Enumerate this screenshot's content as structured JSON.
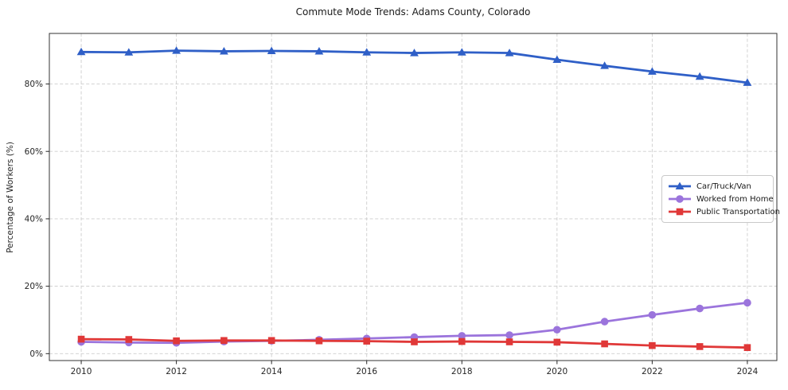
{
  "figure": {
    "title": "Commute Mode Trends: Adams County, Colorado"
  },
  "chart_data": {
    "type": "line",
    "title": "Commute Mode Trends: Adams County, Colorado",
    "xlabel": "",
    "ylabel": "Percentage of Workers (%)",
    "x": [
      2010,
      2011,
      2012,
      2013,
      2014,
      2015,
      2016,
      2017,
      2018,
      2019,
      2020,
      2021,
      2022,
      2023,
      2024
    ],
    "x_ticks": [
      2010,
      2012,
      2014,
      2016,
      2018,
      2020,
      2022,
      2024
    ],
    "x_tick_labels": [
      "2010",
      "2012",
      "2014",
      "2016",
      "2018",
      "2020",
      "2022",
      "2024"
    ],
    "y_ticks": [
      0,
      20,
      40,
      60,
      80
    ],
    "y_tick_labels": [
      "0%",
      "20%",
      "40%",
      "60%",
      "80%"
    ],
    "xlim": [
      2009.33,
      2024.62
    ],
    "ylim": [
      -2.05,
      95.0
    ],
    "grid": "dashed",
    "legend_position": "center-right",
    "series": [
      {
        "name": "Car/Truck/Van",
        "color": "#2f5fc7",
        "marker": "triangle",
        "values": [
          89.5,
          89.4,
          89.9,
          89.7,
          89.8,
          89.7,
          89.4,
          89.2,
          89.4,
          89.2,
          87.2,
          85.4,
          83.7,
          82.2,
          80.4
        ]
      },
      {
        "name": "Worked from Home",
        "color": "#9b74dc",
        "marker": "circle",
        "values": [
          3.5,
          3.3,
          3.2,
          3.6,
          3.8,
          4.1,
          4.5,
          4.9,
          5.3,
          5.5,
          7.1,
          9.5,
          11.5,
          13.4,
          15.1
        ]
      },
      {
        "name": "Public Transportation",
        "color": "#e03838",
        "marker": "square",
        "values": [
          4.3,
          4.2,
          3.8,
          3.9,
          3.9,
          3.8,
          3.7,
          3.5,
          3.6,
          3.5,
          3.4,
          2.9,
          2.4,
          2.1,
          1.8
        ]
      }
    ]
  }
}
